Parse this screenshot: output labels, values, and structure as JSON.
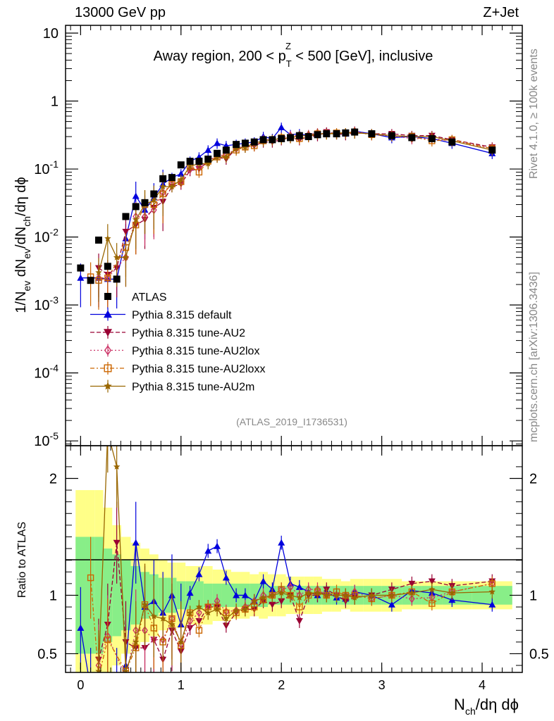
{
  "header": {
    "left": "13000 GeV pp",
    "right": "Z+Jet"
  },
  "chart_data": {
    "type": "scatter",
    "title": "Away region, 200 < p_T^Z < 500 [GeV], inclusive",
    "title_parts": {
      "pre": "Away region, 200 < p",
      "sub": "T",
      "sup": "Z",
      "post": " < 500 [GeV], inclusive"
    },
    "xlabel": "N_ch/dη dϕ",
    "xlabel_parts": {
      "pre": "N",
      "sub": "ch",
      "post": "/dη dϕ"
    },
    "ylabel": "1/N_ev dN_ev/dN_ch/dη dϕ",
    "ylabel_parts": [
      {
        "t": "1/N",
        "sub": false
      },
      {
        "t": "ev",
        "sub": true
      },
      {
        "t": " dN",
        "sub": false
      },
      {
        "t": "ev",
        "sub": true
      },
      {
        "t": "/dN",
        "sub": false
      },
      {
        "t": "ch",
        "sub": true
      },
      {
        "t": "/dη dϕ",
        "sub": false
      }
    ],
    "ratio_ylabel": "Ratio to ATLAS",
    "xlim": [
      -0.15,
      4.4
    ],
    "ylim": [
      8.5e-06,
      13
    ],
    "yscale": "log",
    "ratio_ylim": [
      0.34,
      2.28
    ],
    "x_ticks": [
      "0",
      "1",
      "2",
      "3",
      "4"
    ],
    "y_ticks": [
      {
        "base": "10",
        "exp": ""
      },
      {
        "base": "1",
        "exp": ""
      },
      {
        "base": "10",
        "exp": "-1"
      },
      {
        "base": "10",
        "exp": "-2"
      },
      {
        "base": "10",
        "exp": "-3"
      },
      {
        "base": "10",
        "exp": "-4"
      },
      {
        "base": "10",
        "exp": "-5"
      }
    ],
    "ratio_ticks": [
      "2",
      "1",
      "0.5"
    ],
    "x": [
      0.0,
      0.1,
      0.18,
      0.27,
      0.36,
      0.45,
      0.55,
      0.64,
      0.73,
      0.82,
      0.91,
      1.0,
      1.09,
      1.18,
      1.27,
      1.36,
      1.45,
      1.55,
      1.64,
      1.73,
      1.82,
      1.91,
      2.0,
      2.09,
      2.18,
      2.27,
      2.36,
      2.45,
      2.55,
      2.64,
      2.73,
      2.9,
      3.1,
      3.3,
      3.5,
      3.7,
      4.1
    ],
    "reference": {
      "name": "ATLAS",
      "values": [
        0.0035,
        0.0023,
        0.009,
        0.0037,
        0.0024,
        0.02,
        0.028,
        0.032,
        0.043,
        0.072,
        0.075,
        0.115,
        0.13,
        0.13,
        0.14,
        0.17,
        0.19,
        0.23,
        0.24,
        0.25,
        0.27,
        0.27,
        0.28,
        0.29,
        0.31,
        0.3,
        0.32,
        0.33,
        0.33,
        0.34,
        0.35,
        0.33,
        0.31,
        0.29,
        0.28,
        0.25,
        0.19
      ],
      "ratio_band_green": [
        1.5,
        1.5,
        1.5,
        1.4,
        1.35,
        1.3,
        1.25,
        1.2,
        1.18,
        1.15,
        1.15,
        1.12,
        1.12,
        1.12,
        1.1,
        1.1,
        1.1,
        1.1,
        1.1,
        1.1,
        1.1,
        1.08,
        1.08,
        1.08,
        1.08,
        1.08,
        1.08,
        1.08,
        1.08,
        1.08,
        1.08,
        1.08,
        1.08,
        1.08,
        1.08,
        1.08,
        1.08
      ],
      "ratio_band_yellow": [
        1.9,
        1.9,
        1.9,
        1.75,
        1.6,
        1.5,
        1.45,
        1.4,
        1.35,
        1.3,
        1.28,
        1.28,
        1.25,
        1.25,
        1.25,
        1.22,
        1.22,
        1.2,
        1.2,
        1.18,
        1.2,
        1.18,
        1.18,
        1.16,
        1.16,
        1.16,
        1.16,
        1.14,
        1.14,
        1.12,
        1.14,
        1.14,
        1.14,
        1.12,
        1.12,
        1.12,
        1.12
      ]
    },
    "series": [
      {
        "name": "Pythia 8.315 default",
        "color": "#0000dd",
        "marker": "triangle-up",
        "dash": "",
        "values": [
          0.0025,
          null,
          0.0025,
          0.0024,
          0.0024,
          0.0095,
          0.04,
          0.025,
          0.038,
          0.06,
          0.075,
          0.085,
          0.13,
          0.15,
          0.19,
          0.24,
          0.22,
          0.23,
          0.24,
          0.25,
          0.3,
          0.28,
          0.41,
          0.32,
          0.33,
          0.31,
          0.32,
          0.34,
          0.33,
          0.33,
          0.36,
          0.33,
          0.29,
          0.3,
          0.28,
          0.24,
          0.17
        ],
        "ratio": [
          0.72,
          0.2,
          0.2,
          0.2,
          0.2,
          0.4,
          1.45,
          0.9,
          0.95,
          0.85,
          1.0,
          0.75,
          1.02,
          1.18,
          1.38,
          1.42,
          1.15,
          1.0,
          1.0,
          0.95,
          1.12,
          1.05,
          1.45,
          1.1,
          1.07,
          1.03,
          1.0,
          1.03,
          0.98,
          0.97,
          1.03,
          1.0,
          0.92,
          1.04,
          1.02,
          0.96,
          0.92
        ]
      },
      {
        "name": "Pythia 8.315 tune-AU2",
        "color": "#990033",
        "marker": "triangle-down",
        "dash": "6,3",
        "values": [
          null,
          null,
          0.0035,
          0.0028,
          0.0035,
          0.012,
          0.015,
          0.018,
          0.027,
          0.033,
          0.055,
          0.06,
          0.095,
          0.1,
          0.13,
          0.15,
          0.14,
          0.2,
          0.21,
          0.22,
          0.25,
          0.25,
          0.27,
          0.29,
          0.27,
          0.3,
          0.31,
          0.35,
          0.33,
          0.32,
          0.34,
          0.33,
          0.33,
          0.31,
          0.31,
          0.27,
          0.21
        ],
        "ratio": [
          null,
          null,
          0.45,
          0.75,
          1.45,
          0.6,
          0.55,
          0.55,
          0.62,
          0.45,
          0.7,
          0.52,
          0.72,
          0.78,
          0.9,
          0.9,
          0.74,
          0.85,
          0.88,
          0.88,
          0.95,
          0.92,
          0.95,
          1.0,
          0.78,
          1.0,
          1.0,
          1.05,
          1.0,
          0.95,
          0.98,
          1.0,
          1.05,
          1.1,
          1.12,
          1.08,
          1.12
        ]
      },
      {
        "name": "Pythia 8.315 tune-AU2lox",
        "color": "#cc3366",
        "marker": "diamond-open",
        "dash": "2,3",
        "values": [
          null,
          null,
          0.0025,
          0.0025,
          null,
          0.005,
          0.02,
          0.02,
          0.025,
          0.045,
          0.06,
          0.065,
          0.1,
          0.11,
          0.13,
          0.16,
          0.16,
          0.2,
          0.22,
          0.24,
          0.27,
          0.27,
          0.29,
          0.31,
          0.31,
          0.32,
          0.34,
          0.33,
          0.33,
          0.34,
          0.36,
          0.32,
          0.31,
          0.28,
          0.28,
          0.26,
          0.2
        ],
        "ratio": [
          null,
          null,
          0.4,
          0.65,
          null,
          0.3,
          0.7,
          0.7,
          0.62,
          0.62,
          0.8,
          0.58,
          0.78,
          0.85,
          0.9,
          0.95,
          0.86,
          0.87,
          0.9,
          0.95,
          1.0,
          1.0,
          1.05,
          1.07,
          1.0,
          1.05,
          1.05,
          1.0,
          1.0,
          1.0,
          1.03,
          0.97,
          1.0,
          0.97,
          0.98,
          1.03,
          1.1
        ]
      },
      {
        "name": "Pythia 8.315 tune-AU2loxx",
        "color": "#cc6600",
        "marker": "square-open",
        "dash": "6,3,2,3",
        "values": [
          null,
          0.0026,
          0.0023,
          0.0025,
          null,
          0.007,
          0.015,
          0.03,
          0.03,
          0.043,
          0.06,
          0.065,
          0.11,
          0.09,
          0.13,
          0.15,
          0.16,
          0.19,
          0.21,
          0.22,
          0.26,
          0.27,
          0.29,
          0.29,
          0.28,
          0.3,
          0.33,
          0.33,
          0.34,
          0.34,
          0.35,
          0.32,
          0.31,
          0.3,
          0.26,
          0.27,
          0.2
        ],
        "ratio": [
          null,
          1.15,
          0.3,
          0.62,
          null,
          0.35,
          0.55,
          0.92,
          0.72,
          0.6,
          0.8,
          0.57,
          0.85,
          0.7,
          0.9,
          0.9,
          0.85,
          0.85,
          0.88,
          0.9,
          0.96,
          1.0,
          1.05,
          1.0,
          0.9,
          1.0,
          1.03,
          1.0,
          1.03,
          1.0,
          1.0,
          0.97,
          1.0,
          1.03,
          0.93,
          1.03,
          1.1
        ]
      },
      {
        "name": "Pythia 8.315 tune-AU2m",
        "color": "#996600",
        "marker": "star",
        "dash": "",
        "values": [
          null,
          null,
          0.003,
          0.0095,
          0.005,
          0.005,
          0.018,
          0.03,
          0.035,
          0.055,
          0.055,
          0.07,
          0.11,
          0.12,
          0.12,
          0.15,
          0.15,
          0.2,
          0.21,
          0.24,
          0.26,
          0.27,
          0.28,
          0.29,
          0.31,
          0.31,
          0.33,
          0.33,
          0.33,
          0.34,
          0.34,
          0.33,
          0.31,
          0.3,
          0.3,
          0.26,
          0.19
        ],
        "ratio": [
          null,
          null,
          0.35,
          2.4,
          2.1,
          0.35,
          0.6,
          0.92,
          0.82,
          0.8,
          0.75,
          0.6,
          0.85,
          0.9,
          0.85,
          0.88,
          0.8,
          0.87,
          0.88,
          0.95,
          0.98,
          1.0,
          1.02,
          1.0,
          0.98,
          1.02,
          1.02,
          1.0,
          1.0,
          1.0,
          0.98,
          1.0,
          1.0,
          1.02,
          1.05,
          1.02,
          1.03
        ]
      }
    ],
    "legend_position": "center-left"
  },
  "reference_tag": "(ATLAS_2019_I1736531)",
  "side_labels": {
    "rivet": "Rivet 4.1.0, ≥ 100k events",
    "mcplots": "mcplots.cern.ch [arXiv:1306.3436]"
  }
}
